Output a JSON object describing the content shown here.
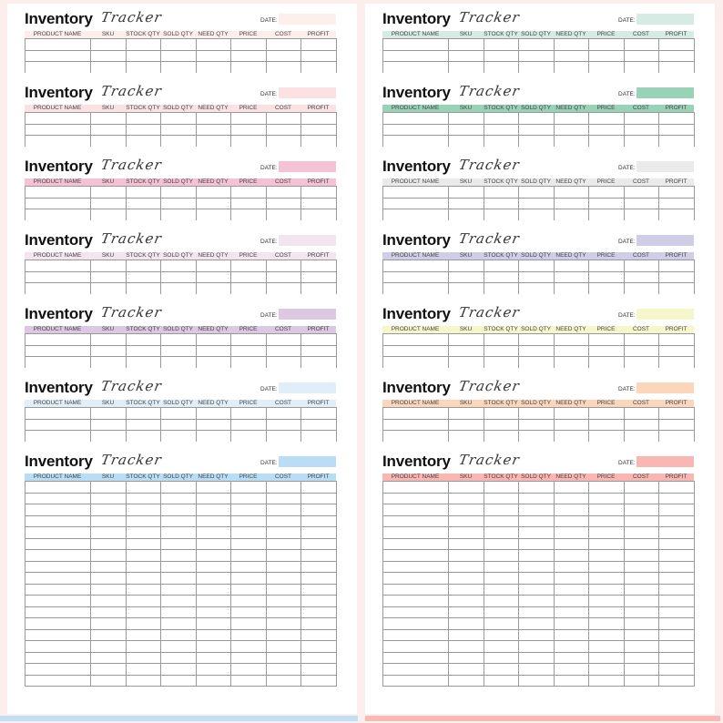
{
  "title": "Inventory",
  "script_title": "Tracker",
  "date_label": "DATE:",
  "columns": [
    "PRODUCT NAME",
    "SKU",
    "STOCK QTY",
    "SOLD QTY",
    "NEED QTY",
    "PRICE",
    "COST",
    "PROFIT"
  ],
  "left_page": {
    "sections": [
      {
        "color": "#fdeeeb",
        "date_color": "#fdefec",
        "rows": 3
      },
      {
        "color": "#fbe1e1",
        "date_color": "#fbe1e1",
        "rows": 3
      },
      {
        "color": "#f5c1d4",
        "date_color": "#f5c1d4",
        "rows": 3
      },
      {
        "color": "#f3e5ef",
        "date_color": "#f3e5ef",
        "rows": 3
      },
      {
        "color": "#dcc8e2",
        "date_color": "#dcc8e2",
        "rows": 3
      },
      {
        "color": "#dfeef8",
        "date_color": "#dfeef8",
        "rows": 3
      },
      {
        "color": "#b9ddf5",
        "date_color": "#b9ddf5",
        "rows": 18
      }
    ]
  },
  "right_page": {
    "sections": [
      {
        "color": "#d6ebe3",
        "date_color": "#d6ebe3",
        "rows": 3
      },
      {
        "color": "#99d3b7",
        "date_color": "#99d3b7",
        "rows": 3
      },
      {
        "color": "#eaeaea",
        "date_color": "#eaeaea",
        "rows": 3
      },
      {
        "color": "#d0cee7",
        "date_color": "#d0cee7",
        "rows": 3
      },
      {
        "color": "#f6f6cc",
        "date_color": "#f6f6cc",
        "rows": 3
      },
      {
        "color": "#fbd6ba",
        "date_color": "#fbd6ba",
        "rows": 3
      },
      {
        "color": "#f9b6b2",
        "date_color": "#f9b6b2",
        "rows": 18
      }
    ]
  }
}
